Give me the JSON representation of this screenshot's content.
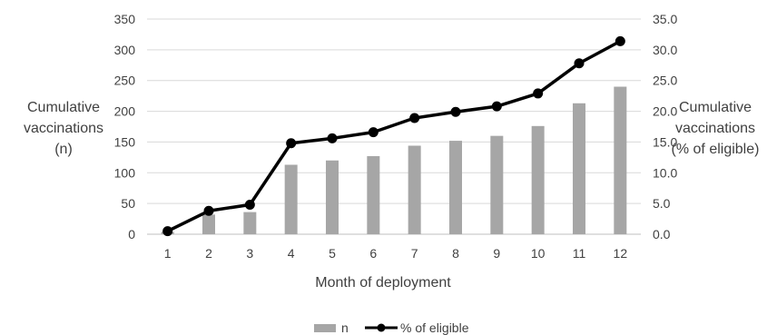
{
  "chart_data": {
    "type": "bar",
    "xlabel": "Month of deployment",
    "ylabel_left": [
      "Cumulative",
      "vaccinations",
      "(n)"
    ],
    "ylabel_right": [
      "Cumulative",
      "vaccinations",
      "(% of eligible)"
    ],
    "categories": [
      "1",
      "2",
      "3",
      "4",
      "5",
      "6",
      "7",
      "8",
      "9",
      "10",
      "11",
      "12"
    ],
    "y_left": {
      "lim": [
        0,
        350
      ],
      "ticks": [
        "0",
        "50",
        "100",
        "150",
        "200",
        "250",
        "300",
        "350"
      ]
    },
    "y_right": {
      "lim": [
        0,
        35
      ],
      "ticks": [
        "0.0",
        "5.0",
        "10.0",
        "15.0",
        "20.0",
        "25.0",
        "30.0",
        "35.0"
      ]
    },
    "grid": true,
    "legend": "bottom",
    "series": [
      {
        "name": "n",
        "type": "bar",
        "axis": "left",
        "color": "#a6a6a6",
        "values": [
          4,
          32,
          36,
          113,
          120,
          127,
          144,
          152,
          160,
          176,
          213,
          240
        ]
      },
      {
        "name": "% of eligible",
        "type": "line",
        "axis": "right",
        "color": "#000000",
        "values": [
          0.5,
          3.8,
          4.8,
          14.8,
          15.6,
          16.6,
          18.9,
          19.9,
          20.8,
          22.9,
          27.8,
          31.4
        ]
      }
    ]
  }
}
